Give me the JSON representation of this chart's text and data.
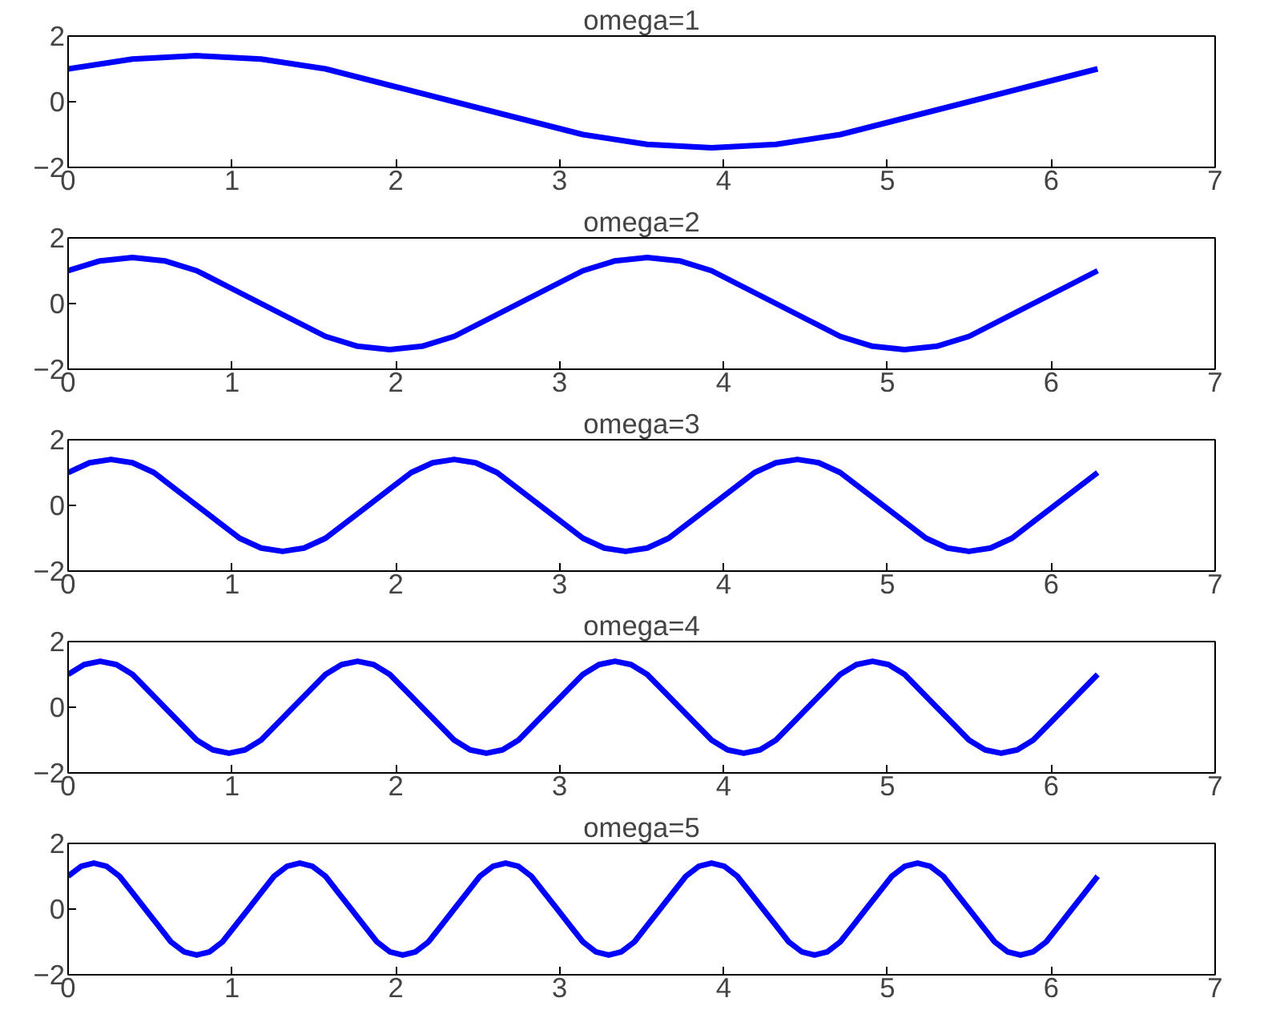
{
  "chart_data": [
    {
      "type": "line",
      "title": "omega=1",
      "color": "#0000ff",
      "xlim": [
        0,
        7
      ],
      "ylim": [
        -2,
        2
      ],
      "xticks": [
        0,
        1,
        2,
        3,
        4,
        5,
        6,
        7
      ],
      "yticks": [
        -2,
        0,
        2
      ],
      "grid": false,
      "x": [
        0,
        0.393,
        0.785,
        1.178,
        1.571,
        1.963,
        2.356,
        2.749,
        3.142,
        3.534,
        3.927,
        4.32,
        4.712,
        5.105,
        5.498,
        5.89,
        6.283
      ],
      "values": [
        1,
        1.3,
        1.4,
        1.3,
        1,
        0.5,
        0,
        -0.5,
        -1,
        -1.3,
        -1.4,
        -1.3,
        -1,
        -0.5,
        0,
        0.5,
        1
      ]
    },
    {
      "type": "line",
      "title": "omega=2",
      "color": "#0000ff",
      "xlim": [
        0,
        7
      ],
      "ylim": [
        -2,
        2
      ],
      "xticks": [
        0,
        1,
        2,
        3,
        4,
        5,
        6,
        7
      ],
      "yticks": [
        -2,
        0,
        2
      ],
      "grid": false,
      "x": [
        0,
        0.196,
        0.393,
        0.589,
        0.785,
        0.982,
        1.178,
        1.374,
        1.571,
        1.767,
        1.963,
        2.16,
        2.356,
        2.553,
        2.749,
        2.945,
        3.142,
        3.338,
        3.534,
        3.731,
        3.927,
        4.123,
        4.32,
        4.516,
        4.712,
        4.909,
        5.105,
        5.301,
        5.498,
        5.694,
        5.89,
        6.087,
        6.283
      ],
      "values": [
        1,
        1.3,
        1.4,
        1.3,
        1,
        0.5,
        0,
        -0.5,
        -1,
        -1.3,
        -1.4,
        -1.3,
        -1,
        -0.5,
        0,
        0.5,
        1,
        1.3,
        1.4,
        1.3,
        1,
        0.5,
        0,
        -0.5,
        -1,
        -1.3,
        -1.4,
        -1.3,
        -1,
        -0.5,
        0,
        0.5,
        1
      ]
    },
    {
      "type": "line",
      "title": "omega=3",
      "color": "#0000ff",
      "xlim": [
        0,
        7
      ],
      "ylim": [
        -2,
        2
      ],
      "xticks": [
        0,
        1,
        2,
        3,
        4,
        5,
        6,
        7
      ],
      "yticks": [
        -2,
        0,
        2
      ],
      "grid": false,
      "x": [
        0,
        0.131,
        0.262,
        0.393,
        0.524,
        0.654,
        0.785,
        0.916,
        1.047,
        1.178,
        1.309,
        1.44,
        1.571,
        1.702,
        1.833,
        1.963,
        2.094,
        2.225,
        2.356,
        2.487,
        2.618,
        2.749,
        2.88,
        3.011,
        3.142,
        3.272,
        3.403,
        3.534,
        3.665,
        3.796,
        3.927,
        4.058,
        4.189,
        4.32,
        4.451,
        4.581,
        4.712,
        4.843,
        4.974,
        5.105,
        5.236,
        5.367,
        5.498,
        5.629,
        5.76,
        5.89,
        6.021,
        6.152,
        6.283
      ],
      "values": [
        1,
        1.3,
        1.4,
        1.3,
        1,
        0.5,
        0,
        -0.5,
        -1,
        -1.3,
        -1.4,
        -1.3,
        -1,
        -0.5,
        0,
        0.5,
        1,
        1.3,
        1.4,
        1.3,
        1,
        0.5,
        0,
        -0.5,
        -1,
        -1.3,
        -1.4,
        -1.3,
        -1,
        -0.5,
        0,
        0.5,
        1,
        1.3,
        1.4,
        1.3,
        1,
        0.5,
        0,
        -0.5,
        -1,
        -1.3,
        -1.4,
        -1.3,
        -1,
        -0.5,
        0,
        0.5,
        1
      ]
    },
    {
      "type": "line",
      "title": "omega=4",
      "color": "#0000ff",
      "xlim": [
        0,
        7
      ],
      "ylim": [
        -2,
        2
      ],
      "xticks": [
        0,
        1,
        2,
        3,
        4,
        5,
        6,
        7
      ],
      "yticks": [
        -2,
        0,
        2
      ],
      "grid": false,
      "x": [
        0,
        0.098,
        0.196,
        0.295,
        0.393,
        0.491,
        0.589,
        0.687,
        0.785,
        0.884,
        0.982,
        1.08,
        1.178,
        1.276,
        1.374,
        1.473,
        1.571,
        1.669,
        1.767,
        1.865,
        1.963,
        2.062,
        2.16,
        2.258,
        2.356,
        2.454,
        2.553,
        2.651,
        2.749,
        2.847,
        2.945,
        3.043,
        3.142,
        3.24,
        3.338,
        3.436,
        3.534,
        3.633,
        3.731,
        3.829,
        3.927,
        4.025,
        4.123,
        4.222,
        4.32,
        4.418,
        4.516,
        4.614,
        4.712,
        4.811,
        4.909,
        5.007,
        5.105,
        5.203,
        5.301,
        5.4,
        5.498,
        5.596,
        5.694,
        5.792,
        5.89,
        5.989,
        6.087,
        6.185,
        6.283
      ],
      "values": [
        1,
        1.3,
        1.4,
        1.3,
        1,
        0.5,
        0,
        -0.5,
        -1,
        -1.3,
        -1.4,
        -1.3,
        -1,
        -0.5,
        0,
        0.5,
        1,
        1.3,
        1.4,
        1.3,
        1,
        0.5,
        0,
        -0.5,
        -1,
        -1.3,
        -1.4,
        -1.3,
        -1,
        -0.5,
        0,
        0.5,
        1,
        1.3,
        1.4,
        1.3,
        1,
        0.5,
        0,
        -0.5,
        -1,
        -1.3,
        -1.4,
        -1.3,
        -1,
        -0.5,
        0,
        0.5,
        1,
        1.3,
        1.4,
        1.3,
        1,
        0.5,
        0,
        -0.5,
        -1,
        -1.3,
        -1.4,
        -1.3,
        -1,
        -0.5,
        0,
        0.5,
        1
      ]
    },
    {
      "type": "line",
      "title": "omega=5",
      "color": "#0000ff",
      "xlim": [
        0,
        7
      ],
      "ylim": [
        -2,
        2
      ],
      "xticks": [
        0,
        1,
        2,
        3,
        4,
        5,
        6,
        7
      ],
      "yticks": [
        -2,
        0,
        2
      ],
      "grid": false,
      "x": [
        0,
        0.079,
        0.157,
        0.236,
        0.314,
        0.393,
        0.471,
        0.55,
        0.628,
        0.707,
        0.785,
        0.864,
        0.942,
        1.021,
        1.1,
        1.178,
        1.257,
        1.335,
        1.414,
        1.492,
        1.571,
        1.649,
        1.728,
        1.806,
        1.885,
        1.963,
        2.042,
        2.121,
        2.199,
        2.278,
        2.356,
        2.435,
        2.513,
        2.592,
        2.67,
        2.749,
        2.827,
        2.906,
        2.985,
        3.063,
        3.142,
        3.22,
        3.299,
        3.377,
        3.456,
        3.534,
        3.613,
        3.691,
        3.77,
        3.848,
        3.927,
        4.006,
        4.084,
        4.163,
        4.241,
        4.32,
        4.398,
        4.477,
        4.555,
        4.634,
        4.712,
        4.791,
        4.869,
        4.948,
        5.027,
        5.105,
        5.184,
        5.262,
        5.341,
        5.419,
        5.498,
        5.576,
        5.655,
        5.733,
        5.812,
        5.89,
        5.969,
        6.048,
        6.126,
        6.205,
        6.283
      ],
      "values": [
        1,
        1.3,
        1.4,
        1.3,
        1,
        0.5,
        0,
        -0.5,
        -1,
        -1.3,
        -1.4,
        -1.3,
        -1,
        -0.5,
        0,
        0.5,
        1,
        1.3,
        1.4,
        1.3,
        1,
        0.5,
        0,
        -0.5,
        -1,
        -1.3,
        -1.4,
        -1.3,
        -1,
        -0.5,
        0,
        0.5,
        1,
        1.3,
        1.4,
        1.3,
        1,
        0.5,
        0,
        -0.5,
        -1,
        -1.3,
        -1.4,
        -1.3,
        -1,
        -0.5,
        0,
        0.5,
        1,
        1.3,
        1.4,
        1.3,
        1,
        0.5,
        0,
        -0.5,
        -1,
        -1.3,
        -1.4,
        -1.3,
        -1,
        -0.5,
        0,
        0.5,
        1,
        1.3,
        1.4,
        1.3,
        1,
        0.5,
        0,
        -0.5,
        -1,
        -1.3,
        -1.4,
        -1.3,
        -1,
        -0.5,
        0,
        0.5,
        1
      ]
    }
  ]
}
